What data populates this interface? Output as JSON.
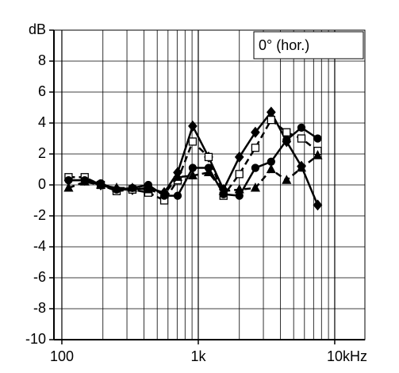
{
  "chart_data": {
    "type": "line",
    "annotation": "0° (hor.)",
    "x": [
      112,
      147,
      193,
      252,
      329,
      430,
      563,
      706,
      910,
      1190,
      1530,
      2000,
      2620,
      3420,
      4440,
      5700,
      7500
    ],
    "xlim": [
      87.5,
      16640
    ],
    "xscale": "log",
    "xticks": [
      100,
      {
        "value": 1000,
        "label": "1k"
      },
      {
        "value": 10000,
        "label": "10kHz"
      }
    ],
    "xgrid": [
      200,
      300,
      400,
      500,
      600,
      700,
      800,
      900,
      2000,
      3000,
      4000,
      5000,
      6000,
      7000,
      8000,
      9000
    ],
    "ylim": [
      -10,
      10
    ],
    "yticks": [
      -10,
      -8,
      -6,
      -4,
      -2,
      0,
      2,
      4,
      6,
      8,
      {
        "value": 10,
        "label": "dB"
      }
    ],
    "grid": true,
    "series": [
      {
        "color": "#000000",
        "dash": false,
        "marker": "diamond",
        "values": [
          0.3,
          0.3,
          0,
          -0.3,
          -0.3,
          -0.2,
          -0.5,
          0.8,
          3.8,
          1.8,
          -0.3,
          1.8,
          3.4,
          4.7,
          2.8,
          1.2,
          -1.3
        ]
      },
      {
        "color": "#000000",
        "dash": true,
        "marker": "square",
        "values": [
          0.5,
          0.5,
          0,
          -0.4,
          -0.3,
          -0.5,
          -1.0,
          0.3,
          2.8,
          1.8,
          -0.7,
          0.7,
          2.4,
          4.2,
          3.4,
          3.0,
          2.2
        ]
      },
      {
        "color": "#000000",
        "dash": false,
        "marker": "circle",
        "values": [
          0.3,
          0.3,
          0.1,
          -0.3,
          -0.2,
          0,
          -0.7,
          -0.7,
          1.1,
          1.1,
          -0.6,
          -0.7,
          1.1,
          1.5,
          2.9,
          3.7,
          3.0
        ]
      },
      {
        "color": "#000000",
        "dash": true,
        "marker": "triangle",
        "values": [
          -0.2,
          0.2,
          0,
          -0.2,
          -0.2,
          -0.3,
          -0.6,
          0.5,
          0.6,
          0.8,
          -0.4,
          -0.3,
          -0.2,
          1.0,
          0.3,
          1.1,
          1.9
        ]
      }
    ]
  }
}
